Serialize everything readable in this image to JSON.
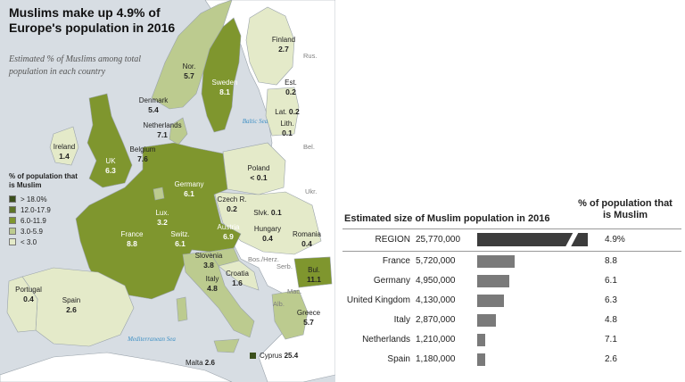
{
  "map": {
    "title": "Muslims make up 4.9% of Europe's population in 2016",
    "subtitle": "Estimated % of Muslims among total population in each country",
    "legend": {
      "title": "% of population that is Muslim",
      "items": [
        {
          "label": "> 18.0%",
          "color": "#3b4f1c"
        },
        {
          "label": "12.0-17.9",
          "color": "#5d7428"
        },
        {
          "label": "6.0-11.9",
          "color": "#7f962e"
        },
        {
          "label": "3.0-5.9",
          "color": "#bccb8f"
        },
        {
          "label": "< 3.0",
          "color": "#e4eac9"
        }
      ]
    },
    "countries": [
      {
        "name": "Finland",
        "value": "2.7"
      },
      {
        "name": "Rus.",
        "value": ""
      },
      {
        "name": "Nor.",
        "value": "5.7"
      },
      {
        "name": "Sweden",
        "value": "8.1"
      },
      {
        "name": "Est.",
        "value": "0.2"
      },
      {
        "name": "Lat.",
        "value": "0.2"
      },
      {
        "name": "Lith.",
        "value": "0.1"
      },
      {
        "name": "Denmark",
        "value": "5.4"
      },
      {
        "name": "Netherlands",
        "value": "7.1"
      },
      {
        "name": "Ireland",
        "value": "1.4"
      },
      {
        "name": "UK",
        "value": "6.3"
      },
      {
        "name": "Belgium",
        "value": "7.6"
      },
      {
        "name": "Germany",
        "value": "6.1"
      },
      {
        "name": "Poland",
        "value": "< 0.1"
      },
      {
        "name": "Bel.",
        "value": ""
      },
      {
        "name": "Czech R.",
        "value": "0.2"
      },
      {
        "name": "Ukr.",
        "value": ""
      },
      {
        "name": "Lux.",
        "value": "3.2"
      },
      {
        "name": "Slvk.",
        "value": "0.1"
      },
      {
        "name": "France",
        "value": "8.8"
      },
      {
        "name": "Switz.",
        "value": "6.1"
      },
      {
        "name": "Austria",
        "value": "6.9"
      },
      {
        "name": "Hungary",
        "value": "0.4"
      },
      {
        "name": "Romania",
        "value": "0.4"
      },
      {
        "name": "Slovenia",
        "value": "3.8"
      },
      {
        "name": "Bos./Herz.",
        "value": ""
      },
      {
        "name": "Serb.",
        "value": ""
      },
      {
        "name": "Croatia",
        "value": "1.6"
      },
      {
        "name": "Bul.",
        "value": "11.1"
      },
      {
        "name": "Mac.",
        "value": ""
      },
      {
        "name": "Portugal",
        "value": "0.4"
      },
      {
        "name": "Spain",
        "value": "2.6"
      },
      {
        "name": "Italy",
        "value": "4.8"
      },
      {
        "name": "Alb.",
        "value": ""
      },
      {
        "name": "Greece",
        "value": "5.7"
      },
      {
        "name": "Cyprus",
        "value": "25.4"
      },
      {
        "name": "Malta",
        "value": "2.6"
      }
    ],
    "seas": [
      "Baltic Sea",
      "Mediterranean Sea"
    ],
    "colors": {
      "water": "#d7dde3",
      "nonEU": "#ffffff",
      "border": "#9aa3ab"
    }
  },
  "table": {
    "title": "Estimated size of Muslim population in 2016",
    "pct_header": "% of population that is Muslim",
    "rows": [
      {
        "name": "REGION",
        "population": "25,770,000",
        "percent": "4.9%",
        "value": 25770000
      },
      {
        "name": "France",
        "population": "5,720,000",
        "percent": "8.8",
        "value": 5720000
      },
      {
        "name": "Germany",
        "population": "4,950,000",
        "percent": "6.1",
        "value": 4950000
      },
      {
        "name": "United Kingdom",
        "population": "4,130,000",
        "percent": "6.3",
        "value": 4130000
      },
      {
        "name": "Italy",
        "population": "2,870,000",
        "percent": "4.8",
        "value": 2870000
      },
      {
        "name": "Netherlands",
        "population": "1,210,000",
        "percent": "7.1",
        "value": 1210000
      },
      {
        "name": "Spain",
        "population": "1,180,000",
        "percent": "2.6",
        "value": 1180000
      }
    ],
    "bar_color": "#7a7a7a",
    "region_bar_color": "#3c3c3c"
  }
}
